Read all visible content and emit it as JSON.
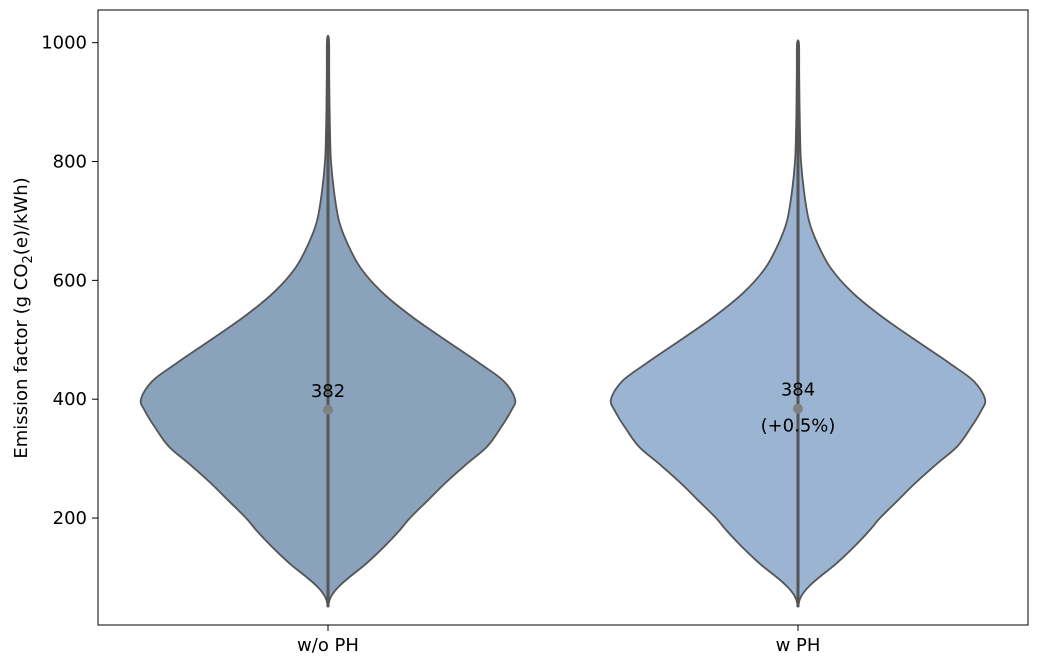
{
  "chart_data": {
    "type": "violin",
    "ylabel_prefix": "Emission factor (g CO",
    "ylabel_sub": "2",
    "ylabel_suffix": "(e)/kWh)",
    "xlabel": "",
    "ylim": [
      20,
      1055
    ],
    "yticks": [
      200,
      400,
      600,
      800,
      1000
    ],
    "categories": [
      "w/o PH",
      "w PH"
    ],
    "series": [
      {
        "color": "#8aa2bc",
        "min": 50,
        "max": 1005,
        "median": 382,
        "median_label": "382",
        "change_label": "",
        "profile": [
          [
            50,
            0
          ],
          [
            62,
            1.6
          ],
          [
            72,
            4.5
          ],
          [
            85,
            11
          ],
          [
            100,
            21
          ],
          [
            120,
            36
          ],
          [
            140,
            49
          ],
          [
            160,
            61
          ],
          [
            180,
            72
          ],
          [
            200,
            82
          ],
          [
            230,
            100
          ],
          [
            260,
            118
          ],
          [
            290,
            138
          ],
          [
            320,
            159
          ],
          [
            350,
            172
          ],
          [
            380,
            183
          ],
          [
            400,
            187
          ],
          [
            430,
            176
          ],
          [
            460,
            152
          ],
          [
            500,
            117
          ],
          [
            540,
            83
          ],
          [
            580,
            54
          ],
          [
            620,
            33
          ],
          [
            660,
            20
          ],
          [
            700,
            11
          ],
          [
            750,
            6
          ],
          [
            800,
            3
          ],
          [
            850,
            2
          ],
          [
            900,
            1.5
          ],
          [
            950,
            1.2
          ],
          [
            1005,
            1
          ]
        ]
      },
      {
        "color": "#9ab4d2",
        "min": 50,
        "max": 998,
        "median": 384,
        "median_label": "384",
        "change_label": "(+0.5%)",
        "profile": [
          [
            50,
            0
          ],
          [
            62,
            1.6
          ],
          [
            72,
            4.5
          ],
          [
            85,
            11
          ],
          [
            100,
            21
          ],
          [
            120,
            36
          ],
          [
            140,
            49
          ],
          [
            160,
            61
          ],
          [
            180,
            72
          ],
          [
            200,
            82
          ],
          [
            230,
            100
          ],
          [
            260,
            118
          ],
          [
            290,
            138
          ],
          [
            320,
            159
          ],
          [
            350,
            172
          ],
          [
            380,
            183
          ],
          [
            400,
            187
          ],
          [
            430,
            176
          ],
          [
            460,
            152
          ],
          [
            500,
            117
          ],
          [
            540,
            83
          ],
          [
            580,
            54
          ],
          [
            620,
            33
          ],
          [
            660,
            20
          ],
          [
            700,
            11
          ],
          [
            750,
            6
          ],
          [
            800,
            3
          ],
          [
            850,
            2
          ],
          [
            900,
            1.5
          ],
          [
            950,
            1.2
          ],
          [
            998,
            1
          ]
        ]
      }
    ],
    "grid": false,
    "legend": "none",
    "outline_color": "#555555",
    "median_dot_color": "#808080"
  }
}
